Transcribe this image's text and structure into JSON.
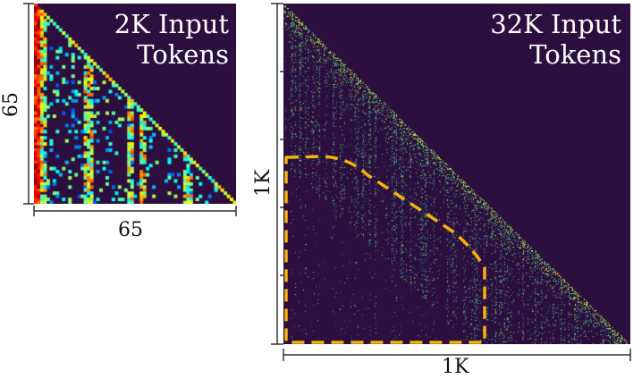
{
  "panels": {
    "small": {
      "title": "2K Input\nTokens",
      "x_label": "65",
      "y_label": "65"
    },
    "large": {
      "title": "32K Input\nTokens",
      "x_label": "1K",
      "y_label": "1K"
    }
  },
  "colors": {
    "background": "#2d0f3f",
    "highlight_region": "#f5b20a",
    "axis": "#333333"
  }
}
